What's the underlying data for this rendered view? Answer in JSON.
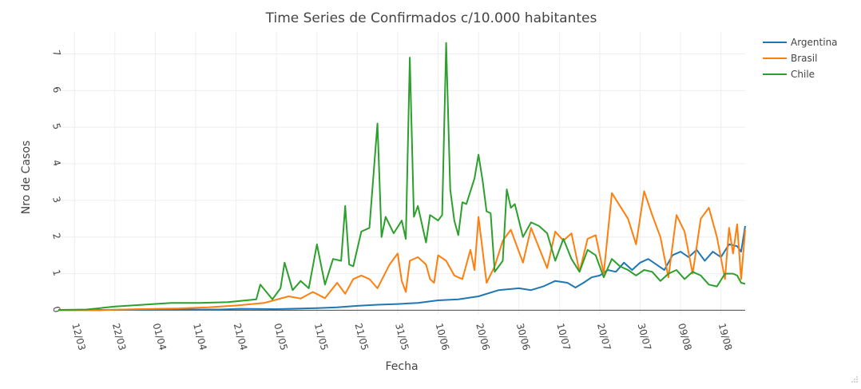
{
  "chart_data": {
    "type": "line",
    "title": "Time Series de Confirmados c/10.000 habitantes",
    "xlabel": "Fecha",
    "ylabel": "Nro de Casos",
    "xlim": [
      "2020-03-08",
      "2020-08-25"
    ],
    "ylim": [
      -0.1,
      7.6
    ],
    "grid": true,
    "legend": "top-right",
    "x_ticks": [
      {
        "date": "2020-03-12",
        "label": "12/03"
      },
      {
        "date": "2020-03-22",
        "label": "22/03"
      },
      {
        "date": "2020-04-01",
        "label": "01/04"
      },
      {
        "date": "2020-04-11",
        "label": "11/04"
      },
      {
        "date": "2020-04-21",
        "label": "21/04"
      },
      {
        "date": "2020-05-01",
        "label": "01/05"
      },
      {
        "date": "2020-05-11",
        "label": "11/05"
      },
      {
        "date": "2020-05-21",
        "label": "21/05"
      },
      {
        "date": "2020-05-31",
        "label": "31/05"
      },
      {
        "date": "2020-06-10",
        "label": "10/06"
      },
      {
        "date": "2020-06-20",
        "label": "20/06"
      },
      {
        "date": "2020-06-30",
        "label": "30/06"
      },
      {
        "date": "2020-07-10",
        "label": "10/07"
      },
      {
        "date": "2020-07-20",
        "label": "20/07"
      },
      {
        "date": "2020-07-30",
        "label": "30/07"
      },
      {
        "date": "2020-08-09",
        "label": "09/08"
      },
      {
        "date": "2020-08-19",
        "label": "19/08"
      }
    ],
    "y_ticks": [
      0,
      1,
      2,
      3,
      4,
      5,
      6,
      7
    ],
    "series": [
      {
        "name": "Argentina",
        "color": "#1f77b4",
        "points": [
          [
            "2020-03-08",
            0
          ],
          [
            "2020-03-18",
            0.01
          ],
          [
            "2020-03-28",
            0.02
          ],
          [
            "2020-04-07",
            0.02
          ],
          [
            "2020-04-17",
            0.02
          ],
          [
            "2020-04-22",
            0.04
          ],
          [
            "2020-05-01",
            0.03
          ],
          [
            "2020-05-11",
            0.06
          ],
          [
            "2020-05-16",
            0.08
          ],
          [
            "2020-05-21",
            0.12
          ],
          [
            "2020-05-26",
            0.15
          ],
          [
            "2020-05-31",
            0.17
          ],
          [
            "2020-06-05",
            0.2
          ],
          [
            "2020-06-10",
            0.27
          ],
          [
            "2020-06-15",
            0.3
          ],
          [
            "2020-06-20",
            0.38
          ],
          [
            "2020-06-25",
            0.55
          ],
          [
            "2020-06-30",
            0.6
          ],
          [
            "2020-07-03",
            0.55
          ],
          [
            "2020-07-06",
            0.65
          ],
          [
            "2020-07-09",
            0.8
          ],
          [
            "2020-07-12",
            0.75
          ],
          [
            "2020-07-14",
            0.62
          ],
          [
            "2020-07-16",
            0.75
          ],
          [
            "2020-07-18",
            0.9
          ],
          [
            "2020-07-20",
            0.95
          ],
          [
            "2020-07-22",
            1.1
          ],
          [
            "2020-07-24",
            1.05
          ],
          [
            "2020-07-26",
            1.3
          ],
          [
            "2020-07-28",
            1.1
          ],
          [
            "2020-07-30",
            1.3
          ],
          [
            "2020-08-01",
            1.4
          ],
          [
            "2020-08-03",
            1.25
          ],
          [
            "2020-08-05",
            1.1
          ],
          [
            "2020-08-07",
            1.5
          ],
          [
            "2020-08-09",
            1.6
          ],
          [
            "2020-08-11",
            1.45
          ],
          [
            "2020-08-13",
            1.65
          ],
          [
            "2020-08-15",
            1.35
          ],
          [
            "2020-08-17",
            1.6
          ],
          [
            "2020-08-19",
            1.45
          ],
          [
            "2020-08-21",
            1.8
          ],
          [
            "2020-08-23",
            1.75
          ],
          [
            "2020-08-24",
            1.6
          ],
          [
            "2020-08-25",
            2.3
          ]
        ]
      },
      {
        "name": "Brasil",
        "color": "#ff7f0e",
        "points": [
          [
            "2020-03-08",
            0
          ],
          [
            "2020-03-18",
            0
          ],
          [
            "2020-03-28",
            0.03
          ],
          [
            "2020-04-07",
            0.05
          ],
          [
            "2020-04-14",
            0.08
          ],
          [
            "2020-04-21",
            0.13
          ],
          [
            "2020-04-28",
            0.2
          ],
          [
            "2020-05-04",
            0.38
          ],
          [
            "2020-05-07",
            0.32
          ],
          [
            "2020-05-10",
            0.5
          ],
          [
            "2020-05-13",
            0.33
          ],
          [
            "2020-05-16",
            0.75
          ],
          [
            "2020-05-18",
            0.45
          ],
          [
            "2020-05-20",
            0.85
          ],
          [
            "2020-05-22",
            0.95
          ],
          [
            "2020-05-24",
            0.85
          ],
          [
            "2020-05-26",
            0.6
          ],
          [
            "2020-05-29",
            1.25
          ],
          [
            "2020-05-31",
            1.55
          ],
          [
            "2020-06-01",
            0.8
          ],
          [
            "2020-06-02",
            0.5
          ],
          [
            "2020-06-03",
            1.35
          ],
          [
            "2020-06-05",
            1.45
          ],
          [
            "2020-06-07",
            1.25
          ],
          [
            "2020-06-08",
            0.85
          ],
          [
            "2020-06-09",
            0.75
          ],
          [
            "2020-06-10",
            1.5
          ],
          [
            "2020-06-12",
            1.35
          ],
          [
            "2020-06-14",
            0.95
          ],
          [
            "2020-06-16",
            0.85
          ],
          [
            "2020-06-18",
            1.65
          ],
          [
            "2020-06-19",
            1.1
          ],
          [
            "2020-06-20",
            2.55
          ],
          [
            "2020-06-22",
            0.75
          ],
          [
            "2020-06-24",
            1.2
          ],
          [
            "2020-06-26",
            1.9
          ],
          [
            "2020-06-28",
            2.2
          ],
          [
            "2020-07-01",
            1.3
          ],
          [
            "2020-07-03",
            2.25
          ],
          [
            "2020-07-05",
            1.7
          ],
          [
            "2020-07-07",
            1.15
          ],
          [
            "2020-07-09",
            2.15
          ],
          [
            "2020-07-11",
            1.9
          ],
          [
            "2020-07-13",
            2.1
          ],
          [
            "2020-07-15",
            1.05
          ],
          [
            "2020-07-17",
            1.95
          ],
          [
            "2020-07-19",
            2.05
          ],
          [
            "2020-07-21",
            1.0
          ],
          [
            "2020-07-23",
            3.2
          ],
          [
            "2020-07-25",
            2.85
          ],
          [
            "2020-07-27",
            2.5
          ],
          [
            "2020-07-29",
            1.8
          ],
          [
            "2020-07-31",
            3.25
          ],
          [
            "2020-08-02",
            2.6
          ],
          [
            "2020-08-04",
            2.0
          ],
          [
            "2020-08-06",
            0.9
          ],
          [
            "2020-08-08",
            2.6
          ],
          [
            "2020-08-10",
            2.15
          ],
          [
            "2020-08-12",
            1.0
          ],
          [
            "2020-08-14",
            2.5
          ],
          [
            "2020-08-16",
            2.8
          ],
          [
            "2020-08-18",
            2.0
          ],
          [
            "2020-08-20",
            0.85
          ],
          [
            "2020-08-21",
            2.25
          ],
          [
            "2020-08-22",
            1.55
          ],
          [
            "2020-08-23",
            2.35
          ],
          [
            "2020-08-24",
            0.85
          ],
          [
            "2020-08-25",
            2.2
          ]
        ]
      },
      {
        "name": "Chile",
        "color": "#2ca02c",
        "points": [
          [
            "2020-03-08",
            0.01
          ],
          [
            "2020-03-15",
            0.02
          ],
          [
            "2020-03-22",
            0.1
          ],
          [
            "2020-03-29",
            0.15
          ],
          [
            "2020-04-05",
            0.2
          ],
          [
            "2020-04-12",
            0.2
          ],
          [
            "2020-04-19",
            0.22
          ],
          [
            "2020-04-26",
            0.3
          ],
          [
            "2020-04-27",
            0.7
          ],
          [
            "2020-04-30",
            0.3
          ],
          [
            "2020-05-02",
            0.6
          ],
          [
            "2020-05-03",
            1.3
          ],
          [
            "2020-05-05",
            0.55
          ],
          [
            "2020-05-07",
            0.8
          ],
          [
            "2020-05-09",
            0.6
          ],
          [
            "2020-05-11",
            1.8
          ],
          [
            "2020-05-13",
            0.7
          ],
          [
            "2020-05-15",
            1.4
          ],
          [
            "2020-05-17",
            1.35
          ],
          [
            "2020-05-18",
            2.85
          ],
          [
            "2020-05-19",
            1.25
          ],
          [
            "2020-05-20",
            1.2
          ],
          [
            "2020-05-22",
            2.15
          ],
          [
            "2020-05-24",
            2.25
          ],
          [
            "2020-05-26",
            5.1
          ],
          [
            "2020-05-27",
            2.0
          ],
          [
            "2020-05-28",
            2.55
          ],
          [
            "2020-05-30",
            2.1
          ],
          [
            "2020-06-01",
            2.45
          ],
          [
            "2020-06-02",
            1.95
          ],
          [
            "2020-06-03",
            6.9
          ],
          [
            "2020-06-04",
            2.55
          ],
          [
            "2020-06-05",
            2.85
          ],
          [
            "2020-06-07",
            1.85
          ],
          [
            "2020-06-08",
            2.6
          ],
          [
            "2020-06-10",
            2.45
          ],
          [
            "2020-06-11",
            2.6
          ],
          [
            "2020-06-12",
            7.3
          ],
          [
            "2020-06-13",
            3.3
          ],
          [
            "2020-06-14",
            2.45
          ],
          [
            "2020-06-15",
            2.05
          ],
          [
            "2020-06-16",
            2.95
          ],
          [
            "2020-06-17",
            2.9
          ],
          [
            "2020-06-19",
            3.6
          ],
          [
            "2020-06-20",
            4.25
          ],
          [
            "2020-06-21",
            3.55
          ],
          [
            "2020-06-22",
            2.7
          ],
          [
            "2020-06-23",
            2.65
          ],
          [
            "2020-06-24",
            1.05
          ],
          [
            "2020-06-26",
            1.35
          ],
          [
            "2020-06-27",
            3.3
          ],
          [
            "2020-06-28",
            2.8
          ],
          [
            "2020-06-29",
            2.9
          ],
          [
            "2020-07-01",
            2.0
          ],
          [
            "2020-07-03",
            2.4
          ],
          [
            "2020-07-05",
            2.3
          ],
          [
            "2020-07-07",
            2.1
          ],
          [
            "2020-07-09",
            1.35
          ],
          [
            "2020-07-11",
            1.95
          ],
          [
            "2020-07-13",
            1.4
          ],
          [
            "2020-07-15",
            1.05
          ],
          [
            "2020-07-17",
            1.65
          ],
          [
            "2020-07-19",
            1.5
          ],
          [
            "2020-07-21",
            0.9
          ],
          [
            "2020-07-23",
            1.4
          ],
          [
            "2020-07-25",
            1.2
          ],
          [
            "2020-07-27",
            1.1
          ],
          [
            "2020-07-29",
            0.95
          ],
          [
            "2020-07-31",
            1.1
          ],
          [
            "2020-08-02",
            1.05
          ],
          [
            "2020-08-04",
            0.8
          ],
          [
            "2020-08-06",
            1.0
          ],
          [
            "2020-08-08",
            1.1
          ],
          [
            "2020-08-10",
            0.85
          ],
          [
            "2020-08-12",
            1.05
          ],
          [
            "2020-08-14",
            0.95
          ],
          [
            "2020-08-16",
            0.7
          ],
          [
            "2020-08-18",
            0.65
          ],
          [
            "2020-08-20",
            1.0
          ],
          [
            "2020-08-22",
            1.0
          ],
          [
            "2020-08-23",
            0.95
          ],
          [
            "2020-08-24",
            0.75
          ],
          [
            "2020-08-25",
            0.72
          ]
        ]
      }
    ]
  }
}
